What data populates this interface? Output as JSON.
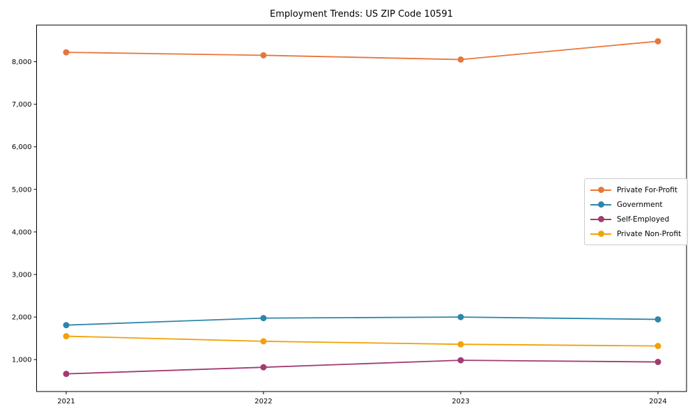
{
  "chart_data": {
    "type": "line",
    "title": "Employment Trends: US ZIP Code 10591",
    "categories": [
      "2021",
      "2022",
      "2023",
      "2024"
    ],
    "series": [
      {
        "name": "Private For-Profit",
        "color": "#E8763B",
        "values": [
          8220,
          8150,
          8050,
          8480
        ]
      },
      {
        "name": "Government",
        "color": "#2E86AB",
        "values": [
          1810,
          1975,
          2000,
          1945
        ]
      },
      {
        "name": "Self-Employed",
        "color": "#A23B72",
        "values": [
          665,
          820,
          985,
          945
        ]
      },
      {
        "name": "Private Non-Profit",
        "color": "#F1A208",
        "values": [
          1550,
          1430,
          1360,
          1320
        ]
      }
    ],
    "xlabel": "",
    "ylabel": "",
    "ylim": [
      250,
      8860
    ],
    "yticks": [
      {
        "value": 1000,
        "label": "1,000"
      },
      {
        "value": 2000,
        "label": "2,000"
      },
      {
        "value": 3000,
        "label": "3,000"
      },
      {
        "value": 4000,
        "label": "4,000"
      },
      {
        "value": 5000,
        "label": "5,000"
      },
      {
        "value": 6000,
        "label": "6,000"
      },
      {
        "value": 7000,
        "label": "7,000"
      },
      {
        "value": 8000,
        "label": "8,000"
      }
    ],
    "grid": false,
    "legend_position": "center-right",
    "background": "#ffffff",
    "axis_color": "#000000"
  }
}
